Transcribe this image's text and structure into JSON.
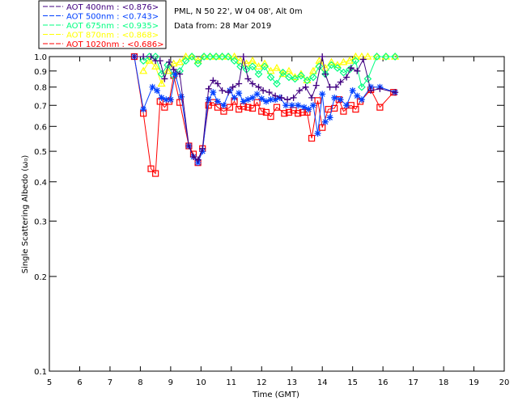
{
  "chart_data": {
    "type": "line",
    "title_lines": [
      "PML, N 50 22', W 04 08', Alt 0m",
      "Data from: 28 Mar 2019"
    ],
    "xlabel": "Time (GMT)",
    "ylabel": "Single Scattering Albedo (ω₀)",
    "xlim": [
      5,
      20
    ],
    "ylim": [
      0.1,
      1.0
    ],
    "yscale": "log",
    "xticks": [
      5,
      6,
      7,
      8,
      9,
      10,
      11,
      12,
      13,
      14,
      15,
      16,
      17,
      18,
      19,
      20
    ],
    "yticks": [
      {
        "v": 1.0,
        "t": "1.0"
      },
      {
        "v": 0.9,
        "t": "0.9"
      },
      {
        "v": 0.8,
        "t": "0.8"
      },
      {
        "v": 0.7,
        "t": "0.7"
      },
      {
        "v": 0.6,
        "t": "0.6"
      },
      {
        "v": 0.5,
        "t": "0.5"
      },
      {
        "v": 0.4,
        "t": "0.4"
      },
      {
        "v": 0.3,
        "t": "0.3"
      },
      {
        "v": 0.2,
        "t": "0.2"
      },
      {
        "v": 0.1,
        "t": "0.1"
      }
    ],
    "series": [
      {
        "name": "AOT 1020nm : <0.686>",
        "color": "#ff0000",
        "marker": "square",
        "x": [
          7.8,
          8.1,
          8.35,
          8.5,
          8.65,
          8.8,
          8.95,
          9.1,
          9.3,
          9.6,
          9.75,
          9.9,
          10.05,
          10.25,
          10.4,
          10.55,
          10.75,
          10.95,
          11.1,
          11.25,
          11.4,
          11.55,
          11.7,
          11.85,
          12.0,
          12.15,
          12.3,
          12.5,
          12.75,
          12.9,
          13.05,
          13.2,
          13.35,
          13.5,
          13.65,
          13.85,
          14.0,
          14.2,
          14.4,
          14.55,
          14.7,
          14.95,
          15.1,
          15.25,
          15.6,
          15.9,
          16.35
        ],
        "y": [
          1.0,
          0.66,
          0.44,
          0.425,
          0.72,
          0.69,
          0.72,
          0.87,
          0.715,
          0.52,
          0.49,
          0.46,
          0.51,
          0.7,
          0.715,
          0.69,
          0.67,
          0.69,
          0.72,
          0.68,
          0.695,
          0.69,
          0.685,
          0.715,
          0.67,
          0.665,
          0.645,
          0.69,
          0.66,
          0.665,
          0.675,
          0.66,
          0.665,
          0.665,
          0.55,
          0.725,
          0.595,
          0.68,
          0.685,
          0.73,
          0.67,
          0.7,
          0.68,
          0.72,
          0.785,
          0.69,
          0.77
        ]
      },
      {
        "name": "AOT 870nm : <0.868>",
        "color": "#ffff00",
        "marker": "triangle",
        "x": [
          8.1,
          8.3,
          8.5,
          8.7,
          8.9,
          9.1,
          9.3,
          9.5,
          9.7,
          9.9,
          10.1,
          10.3,
          10.5,
          10.7,
          10.9,
          11.1,
          11.3,
          11.5,
          11.7,
          11.9,
          12.1,
          12.3,
          12.5,
          12.7,
          12.9,
          13.1,
          13.3,
          13.5,
          13.7,
          13.9,
          14.1,
          14.3,
          14.5,
          14.7,
          14.9,
          15.1,
          15.3,
          15.5,
          15.8,
          16.1,
          16.4
        ],
        "y": [
          0.9,
          0.97,
          0.93,
          0.82,
          0.9,
          0.95,
          0.96,
          1.0,
          1.0,
          0.97,
          1.0,
          1.0,
          1.0,
          1.0,
          1.0,
          1.0,
          0.97,
          0.95,
          0.97,
          0.93,
          0.95,
          0.9,
          0.92,
          0.88,
          0.9,
          0.86,
          0.88,
          0.84,
          0.9,
          0.97,
          0.92,
          0.96,
          0.94,
          0.96,
          0.97,
          1.0,
          1.0,
          1.0,
          1.0,
          1.0,
          1.0
        ]
      },
      {
        "name": "AOT 675nm : <0.935>",
        "color": "#00ff80",
        "marker": "diamond",
        "x": [
          8.1,
          8.3,
          8.5,
          8.7,
          8.9,
          9.1,
          9.3,
          9.5,
          9.7,
          9.9,
          10.1,
          10.3,
          10.5,
          10.7,
          10.9,
          11.1,
          11.3,
          11.5,
          11.7,
          11.9,
          12.1,
          12.3,
          12.5,
          12.7,
          12.9,
          13.1,
          13.3,
          13.5,
          13.7,
          13.9,
          14.1,
          14.3,
          14.5,
          14.7,
          14.9,
          15.1,
          15.3,
          15.5,
          15.8,
          16.1,
          16.4
        ],
        "y": [
          0.97,
          1.0,
          1.0,
          0.88,
          0.94,
          0.87,
          0.9,
          0.97,
          1.0,
          0.95,
          1.0,
          1.0,
          1.0,
          1.0,
          1.0,
          0.97,
          0.93,
          0.91,
          0.93,
          0.88,
          0.93,
          0.86,
          0.82,
          0.89,
          0.86,
          0.85,
          0.87,
          0.84,
          0.86,
          0.93,
          0.88,
          0.94,
          0.92,
          0.89,
          0.91,
          0.97,
          0.8,
          0.85,
          1.0,
          1.0,
          1.0
        ]
      },
      {
        "name": "AOT 500nm : <0.743>",
        "color": "#0040ff",
        "marker": "asterisk",
        "x": [
          7.8,
          8.1,
          8.4,
          8.55,
          8.7,
          8.85,
          9.0,
          9.15,
          9.35,
          9.6,
          9.75,
          9.9,
          10.05,
          10.25,
          10.4,
          10.55,
          10.75,
          10.95,
          11.1,
          11.25,
          11.4,
          11.55,
          11.7,
          11.85,
          12.0,
          12.15,
          12.3,
          12.45,
          12.6,
          12.8,
          13.0,
          13.2,
          13.4,
          13.55,
          13.7,
          13.85,
          14.0,
          14.1,
          14.25,
          14.4,
          14.6,
          14.8,
          15.0,
          15.15,
          15.3,
          15.6,
          15.9,
          16.4
        ],
        "y": [
          1.0,
          0.68,
          0.8,
          0.78,
          0.74,
          0.73,
          0.73,
          0.88,
          0.745,
          0.52,
          0.48,
          0.46,
          0.5,
          0.73,
          0.77,
          0.72,
          0.7,
          0.78,
          0.74,
          0.765,
          0.72,
          0.73,
          0.74,
          0.76,
          0.735,
          0.72,
          0.73,
          0.73,
          0.74,
          0.7,
          0.7,
          0.7,
          0.69,
          0.68,
          0.7,
          0.57,
          0.76,
          0.62,
          0.64,
          0.74,
          0.73,
          0.7,
          0.78,
          0.75,
          0.73,
          0.8,
          0.8,
          0.77
        ]
      },
      {
        "name": "AOT 400nm : <0.876>",
        "color": "#400080",
        "marker": "plus",
        "x": [
          7.8,
          8.1,
          8.35,
          8.5,
          8.65,
          8.8,
          8.95,
          9.1,
          9.3,
          9.6,
          9.75,
          9.9,
          10.05,
          10.25,
          10.4,
          10.55,
          10.7,
          10.9,
          11.05,
          11.25,
          11.4,
          11.55,
          11.7,
          11.9,
          12.05,
          12.25,
          12.45,
          12.65,
          12.85,
          13.05,
          13.25,
          13.45,
          13.65,
          13.8,
          14.0,
          14.1,
          14.25,
          14.45,
          14.6,
          14.8,
          14.95,
          15.15,
          15.35,
          15.6,
          15.9,
          16.4
        ],
        "y": [
          1.0,
          1.0,
          1.0,
          0.97,
          0.97,
          0.85,
          0.96,
          0.91,
          0.88,
          0.52,
          0.48,
          0.47,
          0.51,
          0.79,
          0.84,
          0.82,
          0.78,
          0.77,
          0.8,
          0.82,
          1.0,
          0.85,
          0.82,
          0.8,
          0.78,
          0.77,
          0.75,
          0.74,
          0.73,
          0.74,
          0.78,
          0.8,
          0.74,
          0.81,
          1.0,
          0.88,
          0.8,
          0.8,
          0.83,
          0.86,
          0.92,
          0.9,
          0.98,
          0.78,
          0.79,
          0.77
        ]
      }
    ]
  }
}
